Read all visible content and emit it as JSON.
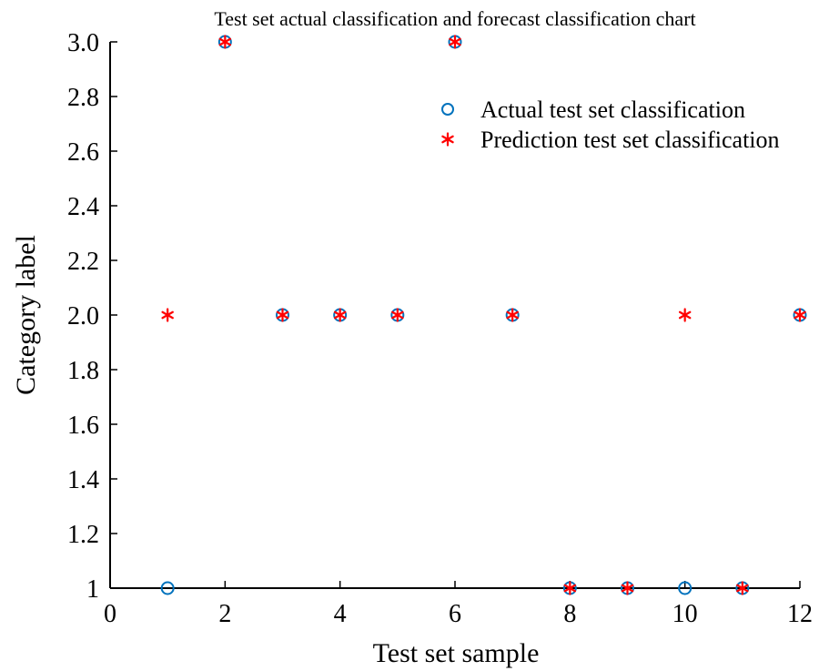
{
  "chart_data": {
    "type": "scatter",
    "title": "Test set actual classification and forecast classification chart",
    "xlabel": "Test set sample",
    "ylabel": "Category label",
    "xlim": [
      0,
      12
    ],
    "ylim": [
      1,
      3
    ],
    "x_ticks": [
      {
        "value": 0,
        "label": "0"
      },
      {
        "value": 2,
        "label": "2"
      },
      {
        "value": 4,
        "label": "4"
      },
      {
        "value": 6,
        "label": "6"
      },
      {
        "value": 8,
        "label": "8"
      },
      {
        "value": 10,
        "label": "10"
      },
      {
        "value": 12,
        "label": "12"
      }
    ],
    "y_ticks": [
      {
        "value": 1.0,
        "label": "1"
      },
      {
        "value": 1.2,
        "label": "1.2"
      },
      {
        "value": 1.4,
        "label": "1.4"
      },
      {
        "value": 1.6,
        "label": "1.6"
      },
      {
        "value": 1.8,
        "label": "1.8"
      },
      {
        "value": 2.0,
        "label": "2.0"
      },
      {
        "value": 2.2,
        "label": "2.2"
      },
      {
        "value": 2.4,
        "label": "2.4"
      },
      {
        "value": 2.6,
        "label": "2.6"
      },
      {
        "value": 2.8,
        "label": "2.8"
      },
      {
        "value": 3.0,
        "label": "3.0"
      }
    ],
    "grid": false,
    "legend_position": "top-right",
    "series": [
      {
        "name": "Actual test set classification",
        "marker": "circle",
        "color": "#0072BD",
        "x": [
          1,
          2,
          3,
          4,
          5,
          6,
          7,
          8,
          9,
          10,
          11,
          12
        ],
        "y": [
          1,
          3,
          2,
          2,
          2,
          3,
          2,
          1,
          1,
          1,
          1,
          2
        ]
      },
      {
        "name": "Prediction test set classification",
        "marker": "asterisk",
        "color": "#FF0000",
        "x": [
          1,
          2,
          3,
          4,
          5,
          6,
          7,
          8,
          9,
          10,
          11,
          12
        ],
        "y": [
          2,
          3,
          2,
          2,
          2,
          3,
          2,
          1,
          1,
          2,
          1,
          2
        ]
      }
    ]
  }
}
